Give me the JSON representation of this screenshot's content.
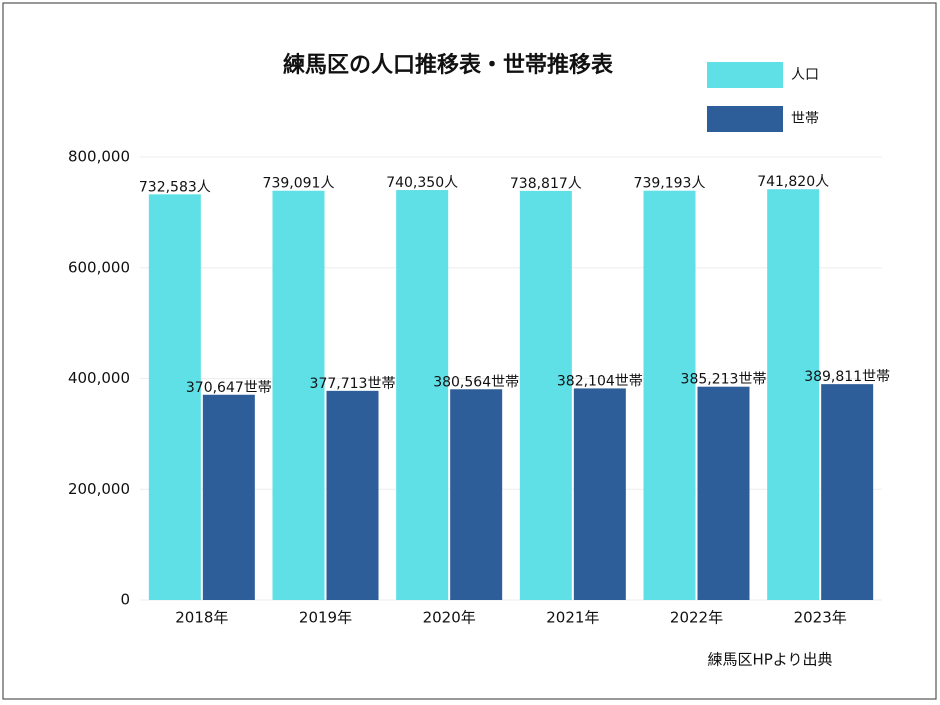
{
  "chart_data": {
    "type": "bar",
    "title": "練馬区の人口推移表・世帯推移表",
    "categories": [
      "2018年",
      "2019年",
      "2020年",
      "2021年",
      "2022年",
      "2023年"
    ],
    "series": [
      {
        "name": "人口",
        "color": "#5ee0e6",
        "values": [
          732583,
          739091,
          740350,
          738817,
          739193,
          741820
        ],
        "value_labels": [
          "732,583人",
          "739,091人",
          "740,350人",
          "738,817人",
          "739,193人",
          "741,820人"
        ]
      },
      {
        "name": "世帯",
        "color": "#2e5e99",
        "values": [
          370647,
          377713,
          380564,
          382104,
          385213,
          389811
        ],
        "value_labels": [
          "370,647世帯",
          "377,713世帯",
          "380,564世帯",
          "382,104世帯",
          "385,213世帯",
          "389,811世帯"
        ]
      }
    ],
    "ylim": [
      0,
      800000
    ],
    "yticks": [
      0,
      {
        "value": 200000,
        "label": "200,000"
      },
      {
        "value": 400000,
        "label": "400,000"
      },
      {
        "value": 600000,
        "label": "600,000"
      },
      {
        "value": 800000,
        "label": "800,000"
      }
    ],
    "grid": true,
    "legend": "top-right",
    "source": "練馬区HPより出典"
  }
}
